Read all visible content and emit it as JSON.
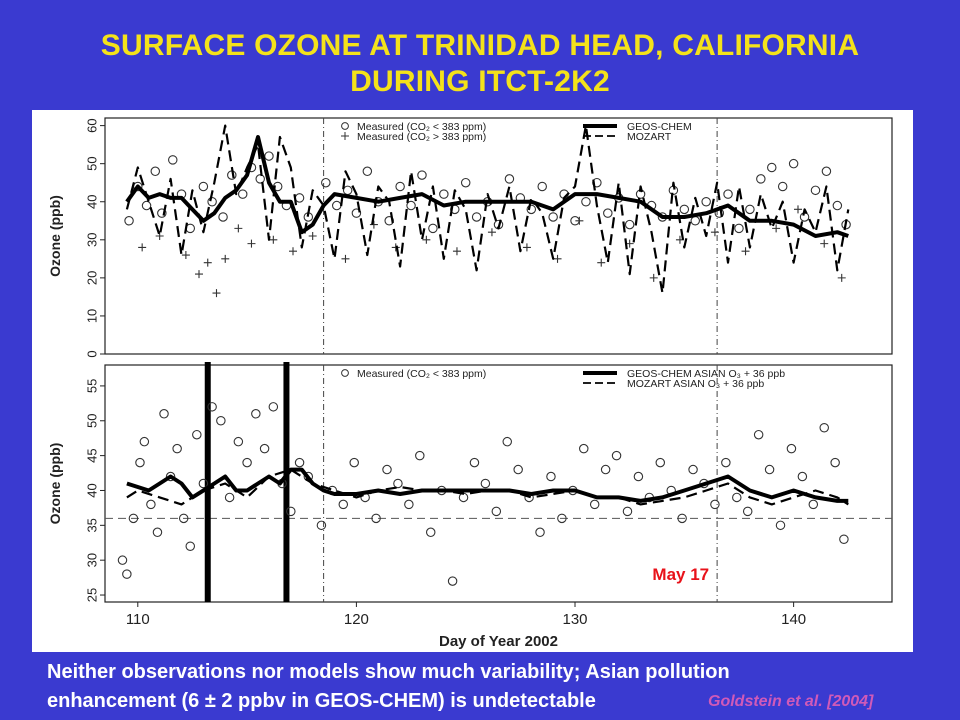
{
  "slide": {
    "title_line1": "SURFACE OZONE AT TRINIDAD HEAD, CALIFORNIA",
    "title_line2": "DURING ITCT-2K2",
    "caption_line1": "Neither observations nor models show much variability; Asian pollution",
    "caption_line2": "enhancement (6 ± 2 ppbv in GEOS-CHEM) is undetectable",
    "credit": "Goldstein et al. [2004]",
    "colors": {
      "background": "#3a3ad0",
      "title": "#f4e21a",
      "annotation": "#e8121a",
      "credit": "#d05ab8"
    }
  },
  "chart_data": [
    {
      "type": "line",
      "ylabel": "Ozone (ppb)",
      "xlim": [
        108.5,
        144.5
      ],
      "ylim": [
        0,
        62
      ],
      "yticks": [
        "0",
        "10",
        "20",
        "30",
        "40",
        "50",
        "60"
      ],
      "legend": [
        "Measured (CO₂ < 383 ppm)",
        "Measured (CO₂ > 383 ppm)",
        "GEOS-CHEM",
        "MOZART"
      ],
      "vlines": [
        118.5,
        136.5
      ],
      "series": [
        {
          "name": "GEOS-CHEM",
          "style": "solid-thick",
          "x": [
            109.5,
            110,
            110.5,
            111,
            111.5,
            112,
            112.5,
            113,
            113.5,
            114,
            114.5,
            115,
            115.5,
            116,
            116.5,
            117,
            117.5,
            118,
            118.5,
            119,
            120,
            121,
            122,
            123,
            124,
            125,
            126,
            127,
            128,
            129,
            130,
            131,
            132,
            133,
            134,
            135,
            136,
            137,
            138,
            139,
            140,
            141,
            142,
            142.5
          ],
          "y": [
            40,
            44,
            41,
            42,
            41,
            41,
            38,
            35,
            37,
            41,
            43,
            47,
            57,
            45,
            40,
            40,
            32,
            34,
            39,
            42,
            41,
            40,
            41,
            42,
            39,
            40,
            40,
            40,
            40,
            38,
            42,
            42,
            41,
            40,
            36,
            36,
            37,
            39,
            35,
            35,
            34,
            31,
            32,
            31
          ]
        },
        {
          "name": "MOZART",
          "style": "dashed",
          "x": [
            109.5,
            110,
            110.5,
            111,
            111.5,
            112,
            112.5,
            113,
            113.5,
            114,
            114.5,
            115,
            115.5,
            116,
            116.5,
            117,
            117.5,
            118,
            118.5,
            119,
            119.5,
            120,
            120.5,
            121,
            121.5,
            122,
            122.5,
            123,
            123.5,
            124,
            124.5,
            125,
            125.5,
            126,
            126.5,
            127,
            127.5,
            128,
            128.5,
            129,
            129.5,
            130,
            130.5,
            131,
            131.5,
            132,
            132.5,
            133,
            133.5,
            134,
            134.5,
            135,
            135.5,
            136,
            136.5,
            137,
            137.5,
            138,
            138.5,
            139,
            139.5,
            140,
            140.5,
            141,
            141.5,
            142,
            142.5
          ],
          "y": [
            38,
            49,
            40,
            31,
            46,
            26,
            43,
            32,
            45,
            60,
            42,
            49,
            55,
            30,
            57,
            49,
            28,
            43,
            39,
            25,
            48,
            42,
            26,
            44,
            40,
            23,
            48,
            30,
            44,
            25,
            43,
            38,
            22,
            42,
            33,
            44,
            27,
            41,
            37,
            25,
            41,
            44,
            60,
            39,
            24,
            45,
            21,
            44,
            32,
            16,
            45,
            28,
            41,
            31,
            45,
            24,
            44,
            28,
            42,
            33,
            40,
            24,
            38,
            32,
            44,
            22,
            38
          ]
        }
      ],
      "scatter": [
        {
          "name": "Measured (CO₂ < 383 ppm)",
          "marker": "circle",
          "x": [
            109.6,
            110.0,
            110.4,
            110.8,
            111.1,
            111.6,
            112.0,
            112.4,
            113.0,
            113.4,
            113.9,
            114.3,
            114.8,
            115.2,
            115.6,
            116.0,
            116.4,
            116.8,
            117.4,
            117.8,
            118.6,
            119.1,
            119.6,
            120.0,
            120.5,
            121.0,
            121.5,
            122.0,
            122.5,
            123.0,
            123.5,
            124.0,
            124.5,
            125.0,
            125.5,
            126.0,
            126.5,
            127.0,
            127.5,
            128.0,
            128.5,
            129.0,
            129.5,
            130.0,
            130.5,
            131.0,
            131.5,
            132.0,
            132.5,
            133.0,
            133.5,
            134.0,
            134.5,
            135.0,
            135.5,
            136.0,
            136.6,
            137.0,
            137.5,
            138.0,
            138.5,
            139.0,
            139.5,
            140.0,
            140.5,
            141.0,
            141.5,
            142.0,
            142.4
          ],
          "y": [
            35,
            44,
            39,
            48,
            37,
            51,
            42,
            33,
            44,
            40,
            36,
            47,
            42,
            49,
            46,
            52,
            44,
            39,
            41,
            36,
            45,
            39,
            43,
            37,
            48,
            40,
            35,
            44,
            39,
            47,
            33,
            42,
            38,
            45,
            36,
            40,
            34,
            46,
            41,
            38,
            44,
            36,
            42,
            35,
            40,
            45,
            37,
            41,
            34,
            42,
            39,
            36,
            43,
            38,
            35,
            40,
            37,
            42,
            33,
            38,
            46,
            49,
            44,
            50,
            36,
            43,
            48,
            39,
            34
          ]
        },
        {
          "name": "Measured (CO₂ > 383 ppm)",
          "marker": "plus",
          "x": [
            110.2,
            111.0,
            112.2,
            112.8,
            113.2,
            113.6,
            114.0,
            114.6,
            115.2,
            116.2,
            117.1,
            118.0,
            119.5,
            120.8,
            121.8,
            123.2,
            124.6,
            126.2,
            127.8,
            129.2,
            130.2,
            131.2,
            132.5,
            133.6,
            134.8,
            136.4,
            137.8,
            139.2,
            140.2,
            141.4,
            142.2
          ],
          "y": [
            28,
            31,
            26,
            21,
            24,
            16,
            25,
            33,
            29,
            30,
            27,
            31,
            25,
            34,
            28,
            30,
            27,
            32,
            28,
            25,
            35,
            24,
            29,
            20,
            30,
            32,
            27,
            33,
            38,
            29,
            20
          ]
        }
      ]
    },
    {
      "type": "line",
      "xlabel": "Day of Year 2002",
      "ylabel": "Ozone (ppb)",
      "xlim": [
        108.5,
        144.5
      ],
      "ylim": [
        24,
        58
      ],
      "xticks": [
        "110",
        "120",
        "130",
        "140"
      ],
      "yticks": [
        "25",
        "30",
        "35",
        "40",
        "45",
        "50",
        "55"
      ],
      "legend": [
        "Measured (CO₂ < 383 ppm)",
        "GEOS-CHEM ASIAN O₃ + 36 ppb",
        "MOZART ASIAN O₃ + 36 ppb"
      ],
      "vlines": [
        118.5,
        136.5
      ],
      "hline": 36,
      "markers": [
        113.2,
        116.8
      ],
      "annotation": {
        "text": "May 17"
      },
      "series": [
        {
          "name": "GEOS-CHEM ASIAN O₃ + 36 ppb",
          "style": "solid-thick",
          "x": [
            109.5,
            110,
            110.5,
            111,
            111.5,
            112,
            112.5,
            113,
            113.5,
            114,
            114.5,
            115,
            115.5,
            116,
            116.5,
            117,
            117.5,
            118,
            118.5,
            119,
            120,
            121,
            122,
            123,
            124,
            125,
            126,
            127,
            128,
            129,
            130,
            131,
            132,
            133,
            134,
            135,
            136,
            137,
            138,
            139,
            140,
            141,
            142,
            142.5
          ],
          "y": [
            41,
            40.5,
            40,
            41,
            42,
            41,
            39,
            40,
            41,
            42,
            40,
            40,
            41,
            42,
            41,
            43,
            43,
            41,
            40,
            39.5,
            39.5,
            40,
            39.5,
            40,
            40,
            40,
            40,
            40,
            39.5,
            40,
            40,
            39,
            39,
            38.5,
            39,
            40,
            41,
            42,
            40,
            39,
            40,
            39,
            38.5,
            38.5
          ]
        },
        {
          "name": "MOZART ASIAN O₃ + 36 ppb",
          "style": "dashed",
          "x": [
            109.5,
            110,
            111,
            112,
            113,
            114,
            115,
            116,
            117,
            118,
            119,
            120,
            121,
            122,
            123,
            124,
            125,
            126,
            127,
            128,
            129,
            130,
            131,
            132,
            133,
            134,
            135,
            136,
            137,
            138,
            139,
            140,
            141,
            142,
            142.5
          ],
          "y": [
            39,
            40,
            39,
            38,
            40,
            41,
            39,
            42,
            43,
            41,
            40,
            39,
            40,
            40.5,
            40,
            40,
            39.5,
            40,
            40,
            39,
            39.5,
            40,
            39,
            39,
            38,
            38.5,
            39,
            40,
            41,
            39,
            38,
            39,
            40,
            39,
            38
          ]
        }
      ],
      "scatter": [
        {
          "name": "Measured (CO₂ < 383 ppm)",
          "marker": "circle",
          "x": [
            109.3,
            109.5,
            109.8,
            110.1,
            110.3,
            110.6,
            110.9,
            111.2,
            111.5,
            111.8,
            112.1,
            112.4,
            112.7,
            113.0,
            113.4,
            113.8,
            114.2,
            114.6,
            115.0,
            115.4,
            115.8,
            116.2,
            116.6,
            117.0,
            117.4,
            117.8,
            118.4,
            118.9,
            119.4,
            119.9,
            120.4,
            120.9,
            121.4,
            121.9,
            122.4,
            122.9,
            123.4,
            123.9,
            124.4,
            124.9,
            125.4,
            125.9,
            126.4,
            126.9,
            127.4,
            127.9,
            128.4,
            128.9,
            129.4,
            129.9,
            130.4,
            130.9,
            131.4,
            131.9,
            132.4,
            132.9,
            133.4,
            133.9,
            134.4,
            134.9,
            135.4,
            135.9,
            136.4,
            136.9,
            137.4,
            137.9,
            138.4,
            138.9,
            139.4,
            139.9,
            140.4,
            140.9,
            141.4,
            141.9,
            142.3
          ],
          "y": [
            30,
            28,
            36,
            44,
            47,
            38,
            34,
            51,
            42,
            46,
            36,
            32,
            48,
            41,
            52,
            50,
            39,
            47,
            44,
            51,
            46,
            52,
            41,
            37,
            44,
            42,
            35,
            40,
            38,
            44,
            39,
            36,
            43,
            41,
            38,
            45,
            34,
            40,
            27,
            39,
            44,
            41,
            37,
            47,
            43,
            39,
            34,
            42,
            36,
            40,
            46,
            38,
            43,
            45,
            37,
            42,
            39,
            44,
            40,
            36,
            43,
            41,
            38,
            44,
            39,
            37,
            48,
            43,
            35,
            46,
            42,
            38,
            49,
            44,
            33
          ]
        }
      ]
    }
  ]
}
